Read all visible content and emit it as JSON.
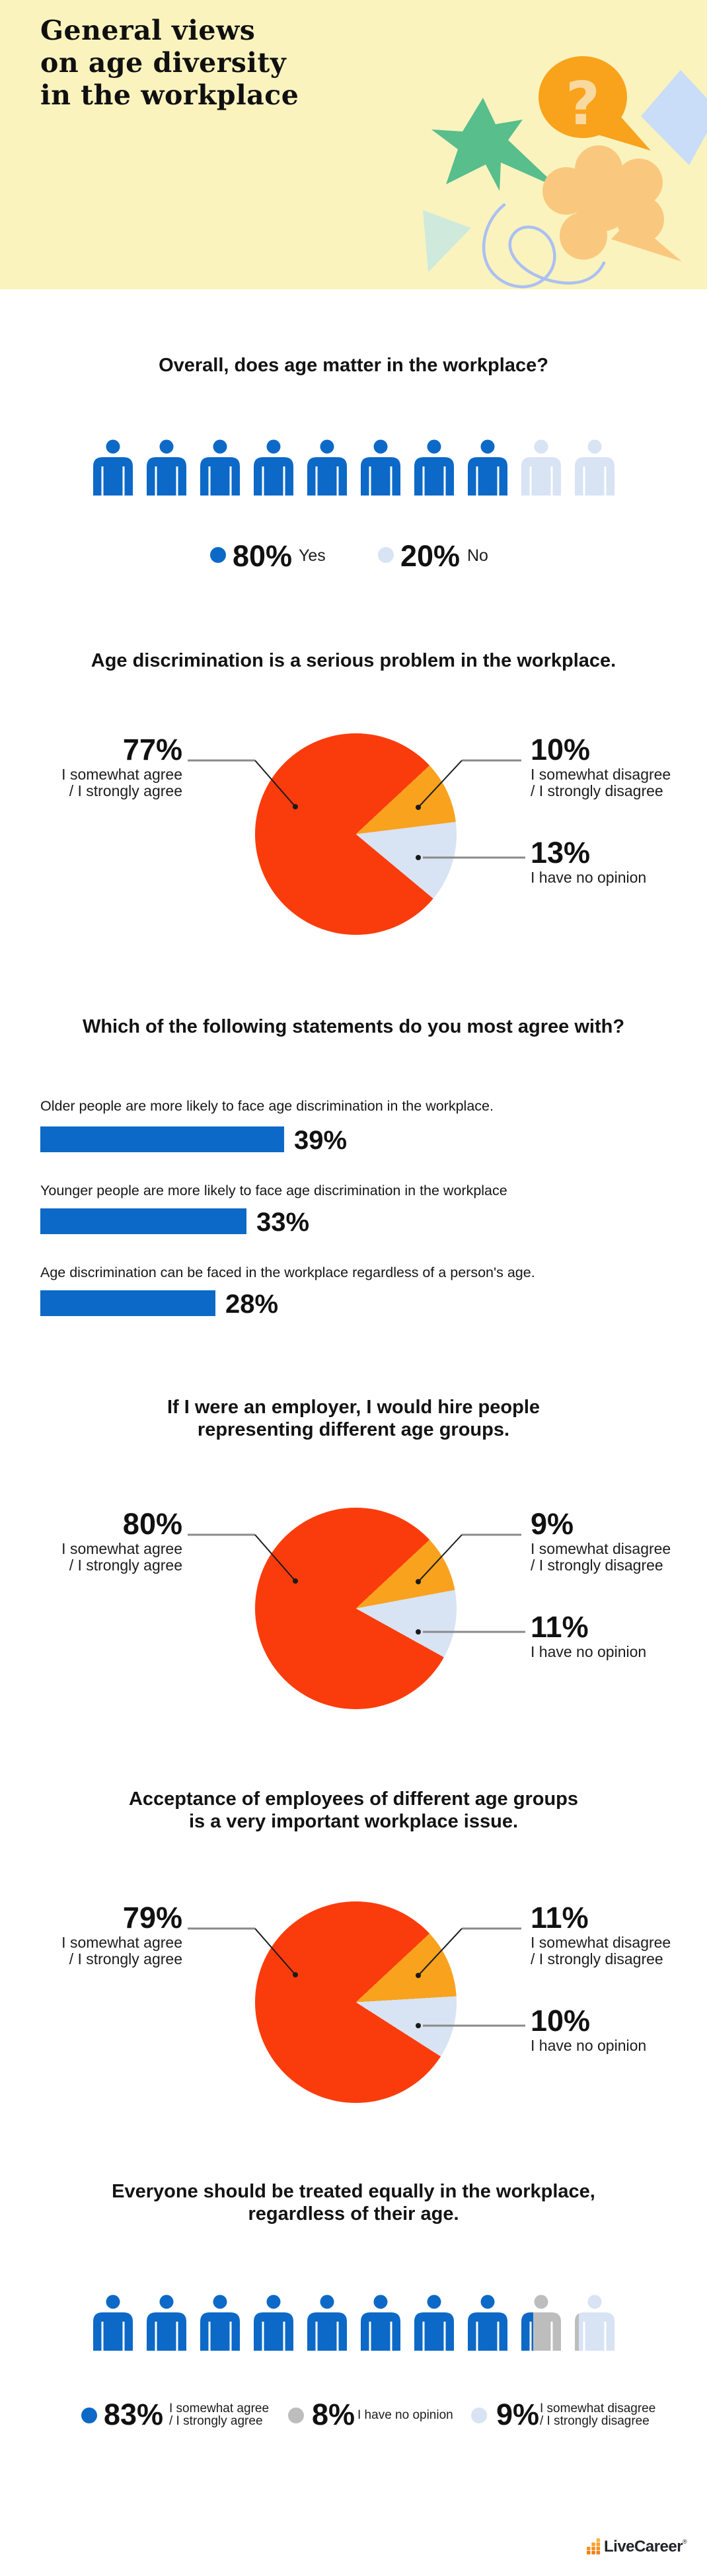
{
  "colors": {
    "blue": "#0C69C7",
    "light_blue": "#D8E3F4",
    "gray": "#BDBDBD",
    "red": "#FA3C0C",
    "orange": "#F9A21E",
    "header_bg": "#FAF3BE",
    "leader": "#8A8A8A",
    "bubble": "#F9A21C",
    "question": "#F8D9A0",
    "star": "#57BE8C",
    "diamond": "#C9DCF8",
    "flower": "#F9C87E",
    "triangle": "#CFEADC",
    "squiggle": "#ABC0F2",
    "logo_orange": "#F7941D",
    "logo_text": "#212528"
  },
  "header": {
    "title": "General views\non age diversity\nin the workplace"
  },
  "sections": [
    {
      "title": "Overall, does age matter in the workplace?",
      "pictograph": {
        "count": 10,
        "segments": [
          {
            "pct": 80,
            "display": "80%",
            "label": "Yes",
            "color": "blue"
          },
          {
            "pct": 20,
            "display": "20%",
            "label": "No",
            "color": "light_blue"
          }
        ]
      }
    },
    {
      "title": "Age discrimination is a serious problem in the workplace.",
      "pie": {
        "start": 47,
        "slices": [
          {
            "pct": 10,
            "color": "orange"
          },
          {
            "pct": 13,
            "color": "light_blue"
          },
          {
            "pct": 77,
            "color": "red"
          }
        ]
      },
      "labels": {
        "left": {
          "value": "77%",
          "caption": "I somewhat agree\n/ I strongly agree"
        },
        "right_top": {
          "value": "10%",
          "caption": "I somewhat disagree\n/ I strongly disagree"
        },
        "right_bottom": {
          "value": "13%",
          "caption": "I have no opinion"
        }
      }
    },
    {
      "title": "Which of the following statements do you most agree with?",
      "items": [
        {
          "text": "Older people are more likely to face age discrimination in the workplace.",
          "pct": 39,
          "display": "39%"
        },
        {
          "text": "Younger people are more likely to face age discrimination in the workplace",
          "pct": 33,
          "display": "33%"
        },
        {
          "text": "Age discrimination can be faced in the workplace regardless of a person's age.",
          "pct": 28,
          "display": "28%"
        }
      ]
    },
    {
      "title": "If I were an employer, I would hire people\nrepresenting different age groups.",
      "pie": {
        "start": 47,
        "slices": [
          {
            "pct": 9,
            "color": "orange"
          },
          {
            "pct": 11,
            "color": "light_blue"
          },
          {
            "pct": 80,
            "color": "red"
          }
        ]
      },
      "labels": {
        "left": {
          "value": "80%",
          "caption": "I somewhat agree\n/ I strongly agree"
        },
        "right_top": {
          "value": "9%",
          "caption": "I somewhat disagree\n/ I strongly disagree"
        },
        "right_bottom": {
          "value": "11%",
          "caption": "I have no opinion"
        }
      }
    },
    {
      "title": "Acceptance of employees of different age groups\nis a very important workplace issue.",
      "pie": {
        "start": 47,
        "slices": [
          {
            "pct": 11,
            "color": "orange"
          },
          {
            "pct": 10,
            "color": "light_blue"
          },
          {
            "pct": 79,
            "color": "red"
          }
        ]
      },
      "labels": {
        "left": {
          "value": "79%",
          "caption": "I somewhat agree\n/ I strongly agree"
        },
        "right_top": {
          "value": "11%",
          "caption": "I somewhat disagree\n/ I strongly disagree"
        },
        "right_bottom": {
          "value": "10%",
          "caption": "I have no opinion"
        }
      }
    },
    {
      "title": "Everyone should be treated equally in the workplace,\nregardless of their age.",
      "pictograph": {
        "count": 10,
        "segments": [
          {
            "pct": 83,
            "display": "83%",
            "label": "I somewhat agree\n/ I strongly agree",
            "color": "blue"
          },
          {
            "pct": 8,
            "display": "8%",
            "label": "I have no opinion",
            "color": "gray"
          },
          {
            "pct": 9,
            "display": "9%",
            "label": "I somewhat disagree\n/ I strongly disagree",
            "color": "light_blue"
          }
        ]
      }
    }
  ],
  "footer": {
    "brand": "LiveCareer",
    "reg": "®"
  },
  "chart_data": [
    {
      "type": "pictograph",
      "title": "Overall, does age matter in the workplace?",
      "categories": [
        "Yes",
        "No"
      ],
      "values": [
        80,
        20
      ],
      "unit": "%"
    },
    {
      "type": "pie",
      "title": "Age discrimination is a serious problem in the workplace.",
      "categories": [
        "I somewhat agree / I strongly agree",
        "I somewhat disagree / I strongly disagree",
        "I have no opinion"
      ],
      "values": [
        77,
        10,
        13
      ],
      "unit": "%"
    },
    {
      "type": "bar",
      "title": "Which of the following statements do you most agree with?",
      "categories": [
        "Older people are more likely to face age discrimination in the workplace.",
        "Younger people are more likely to face age discrimination in the workplace",
        "Age discrimination can be faced in the workplace regardless of a person's age."
      ],
      "values": [
        39,
        33,
        28
      ],
      "unit": "%",
      "orientation": "horizontal"
    },
    {
      "type": "pie",
      "title": "If I were an employer, I would hire people representing different age groups.",
      "categories": [
        "I somewhat agree / I strongly agree",
        "I somewhat disagree / I strongly disagree",
        "I have no opinion"
      ],
      "values": [
        80,
        9,
        11
      ],
      "unit": "%"
    },
    {
      "type": "pie",
      "title": "Acceptance of employees of different age groups is a very important workplace issue.",
      "categories": [
        "I somewhat agree / I strongly agree",
        "I somewhat disagree / I strongly disagree",
        "I have no opinion"
      ],
      "values": [
        79,
        11,
        10
      ],
      "unit": "%"
    },
    {
      "type": "pictograph",
      "title": "Everyone should be treated equally in the workplace, regardless of their age.",
      "categories": [
        "I somewhat agree / I strongly agree",
        "I have no opinion",
        "I somewhat disagree / I strongly disagree"
      ],
      "values": [
        83,
        8,
        9
      ],
      "unit": "%"
    }
  ]
}
